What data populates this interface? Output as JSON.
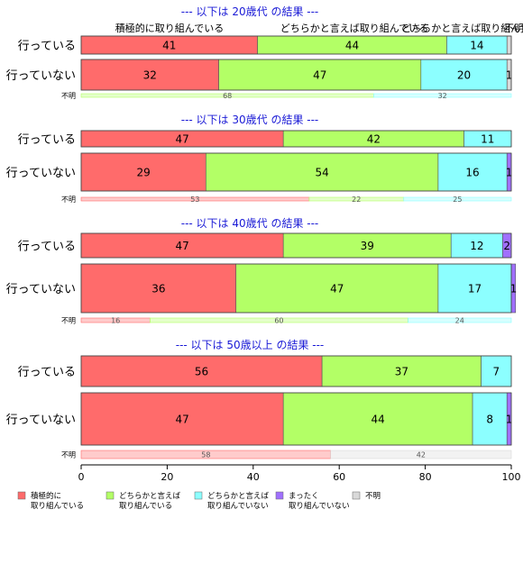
{
  "chart_data": {
    "type": "bar",
    "orientation": "horizontal",
    "stacked": true,
    "xlim": [
      0,
      100
    ],
    "x_ticks": [
      "0",
      "20",
      "40",
      "60",
      "80",
      "100"
    ],
    "categories": [
      "積極的に取り組んでいる",
      "どちらかと言えば取り組んでいる",
      "どちらかと言えば取り組んでいない",
      "まったく取り組んでいない",
      "不明"
    ],
    "category_top_labels": [
      "積極的に取り組んでいる",
      "どちらかと言えば取り組んでいる",
      "どちらかと言えば取り組んでいない",
      "不明"
    ],
    "colors": [
      "#ff6b6b",
      "#b3ff66",
      "#8cffff",
      "#a070ff",
      "#d9d9d9"
    ],
    "legend": {
      "placement": "bottom",
      "entries": [
        {
          "line1": "積極的に",
          "line2": "取り組んでいる"
        },
        {
          "line1": "どちらかと言えば",
          "line2": "取り組んでいる"
        },
        {
          "line1": "どちらかと言えば",
          "line2": "取り組んでいない"
        },
        {
          "line1": "まったく",
          "line2": "取り組んでいない"
        },
        {
          "line1": "不明",
          "line2": ""
        }
      ]
    },
    "groups": [
      {
        "title": "--- 以下は 20歳代 の結果 ---",
        "rows": [
          {
            "label": "行っている",
            "values": [
              41,
              44,
              14,
              0,
              1
            ],
            "value_labels": [
              "41",
              "44",
              "14",
              "",
              ""
            ]
          },
          {
            "label": "行っていない",
            "values": [
              32,
              47,
              20,
              0,
              1
            ],
            "value_labels": [
              "32",
              "47",
              "20",
              "",
              "1"
            ]
          }
        ],
        "unknown": {
          "label": "不明",
          "values": [
            0,
            68,
            32,
            0,
            0
          ],
          "value_labels": [
            "",
            "68",
            "32",
            "",
            ""
          ]
        }
      },
      {
        "title": "--- 以下は 30歳代 の結果 ---",
        "rows": [
          {
            "label": "行っている",
            "values": [
              47,
              42,
              11,
              0,
              0
            ],
            "value_labels": [
              "47",
              "42",
              "11",
              "",
              ""
            ]
          },
          {
            "label": "行っていない",
            "values": [
              29,
              54,
              16,
              1,
              0
            ],
            "value_labels": [
              "29",
              "54",
              "16",
              "1",
              ""
            ]
          }
        ],
        "unknown": {
          "label": "不明",
          "values": [
            53,
            22,
            25,
            0,
            0
          ],
          "value_labels": [
            "53",
            "22",
            "25",
            "",
            ""
          ]
        }
      },
      {
        "title": "--- 以下は 40歳代 の結果 ---",
        "rows": [
          {
            "label": "行っている",
            "values": [
              47,
              39,
              12,
              2,
              0
            ],
            "value_labels": [
              "47",
              "39",
              "12",
              "2",
              ""
            ]
          },
          {
            "label": "行っていない",
            "values": [
              36,
              47,
              17,
              1,
              0
            ],
            "value_labels": [
              "36",
              "47",
              "17",
              "1",
              ""
            ]
          }
        ],
        "unknown": {
          "label": "不明",
          "values": [
            16,
            60,
            24,
            0,
            0
          ],
          "value_labels": [
            "16",
            "60",
            "24",
            "",
            ""
          ]
        }
      },
      {
        "title": "--- 以下は 50歳以上 の結果 ---",
        "rows": [
          {
            "label": "行っている",
            "values": [
              56,
              37,
              7,
              0,
              0
            ],
            "value_labels": [
              "56",
              "37",
              "7",
              "",
              ""
            ]
          },
          {
            "label": "行っていない",
            "values": [
              47,
              44,
              8,
              1,
              0
            ],
            "value_labels": [
              "47",
              "44",
              "8",
              "1",
              ""
            ]
          }
        ],
        "unknown": {
          "label": "不明",
          "values": [
            58,
            0,
            0,
            0,
            42
          ],
          "value_labels": [
            "58",
            "",
            "",
            "",
            "42"
          ]
        }
      }
    ]
  }
}
